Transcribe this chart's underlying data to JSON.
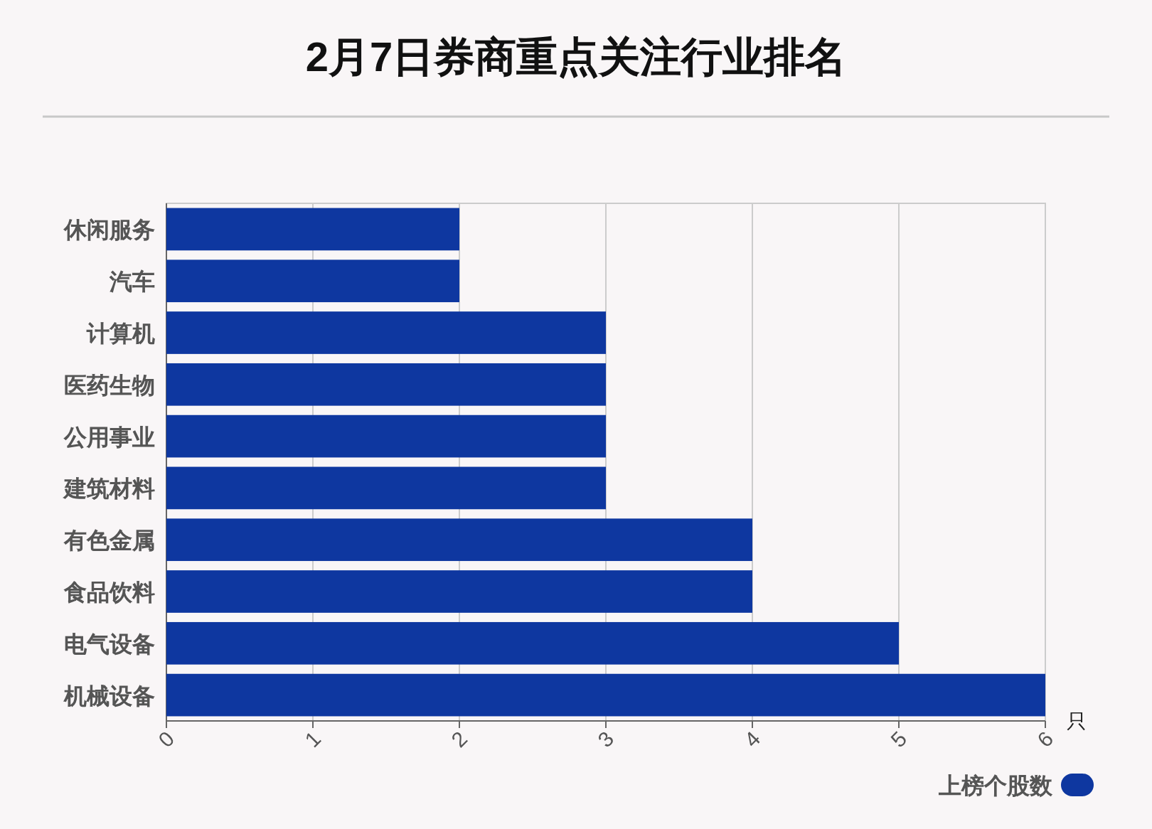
{
  "chart_data": {
    "type": "bar",
    "orientation": "horizontal",
    "title": "2月7日券商重点关注行业排名",
    "xlabel": "只",
    "categories": [
      "休闲服务",
      "汽车",
      "计算机",
      "医药生物",
      "公用事业",
      "建筑材料",
      "有色金属",
      "食品饮料",
      "电气设备",
      "机械设备"
    ],
    "series": [
      {
        "name": "上榜个股数",
        "color": "#0e37a0",
        "values": [
          2,
          2,
          3,
          3,
          3,
          3,
          4,
          4,
          5,
          6
        ]
      }
    ],
    "xlim": [
      0,
      6
    ],
    "xticks": [
      0,
      1,
      2,
      3,
      4,
      5,
      6
    ],
    "grid": "x",
    "legend": "bottom right"
  }
}
